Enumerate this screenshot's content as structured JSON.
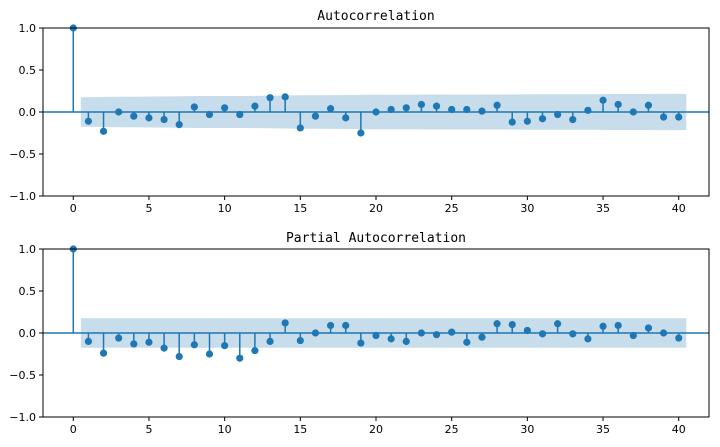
{
  "chart_data": [
    {
      "type": "stem",
      "title": "Autocorrelation",
      "xlim": [
        -2,
        42
      ],
      "ylim": [
        -1.0,
        1.0
      ],
      "xticks": [
        0,
        5,
        10,
        15,
        20,
        25,
        30,
        35,
        40
      ],
      "yticks": [
        1.0,
        0.5,
        0.0,
        -0.5,
        -1.0
      ],
      "ytick_labels": [
        "1.0",
        "0.5",
        "0.0",
        "−0.5",
        "−1.0"
      ],
      "lags": [
        0,
        1,
        2,
        3,
        4,
        5,
        6,
        7,
        8,
        9,
        10,
        11,
        12,
        13,
        14,
        15,
        16,
        17,
        18,
        19,
        20,
        21,
        22,
        23,
        24,
        25,
        26,
        27,
        28,
        29,
        30,
        31,
        32,
        33,
        34,
        35,
        36,
        37,
        38,
        39,
        40
      ],
      "values": [
        1.0,
        -0.11,
        -0.23,
        0.0,
        -0.05,
        -0.07,
        -0.09,
        -0.15,
        0.06,
        -0.03,
        0.05,
        -0.03,
        0.07,
        0.17,
        0.18,
        -0.19,
        -0.05,
        0.04,
        -0.07,
        -0.25,
        0.0,
        0.03,
        0.05,
        0.09,
        0.07,
        0.03,
        0.03,
        0.01,
        0.08,
        -0.12,
        -0.11,
        -0.08,
        -0.03,
        -0.09,
        0.02,
        0.14,
        0.09,
        0.0,
        0.08,
        -0.06,
        -0.06
      ],
      "confidence_band": [
        0.175,
        0.175,
        0.177,
        0.181,
        0.182,
        0.183,
        0.184,
        0.186,
        0.189,
        0.19,
        0.19,
        0.191,
        0.191,
        0.192,
        0.195,
        0.198,
        0.2,
        0.2,
        0.201,
        0.202,
        0.207,
        0.207,
        0.207,
        0.207,
        0.208,
        0.208,
        0.208,
        0.208,
        0.208,
        0.209,
        0.21,
        0.211,
        0.211,
        0.211,
        0.212,
        0.212,
        0.214,
        0.215,
        0.215,
        0.216,
        0.216
      ],
      "colors": {
        "stem": "#1f77b4",
        "band": "#1f77b4",
        "zero_line": "#1f77b4"
      }
    },
    {
      "type": "stem",
      "title": "Partial Autocorrelation",
      "xlim": [
        -2,
        42
      ],
      "ylim": [
        -1.0,
        1.0
      ],
      "xticks": [
        0,
        5,
        10,
        15,
        20,
        25,
        30,
        35,
        40
      ],
      "yticks": [
        1.0,
        0.5,
        0.0,
        -0.5,
        -1.0
      ],
      "ytick_labels": [
        "1.0",
        "0.5",
        "0.0",
        "−0.5",
        "−1.0"
      ],
      "lags": [
        0,
        1,
        2,
        3,
        4,
        5,
        6,
        7,
        8,
        9,
        10,
        11,
        12,
        13,
        14,
        15,
        16,
        17,
        18,
        19,
        20,
        21,
        22,
        23,
        24,
        25,
        26,
        27,
        28,
        29,
        30,
        31,
        32,
        33,
        34,
        35,
        36,
        37,
        38,
        39,
        40
      ],
      "values": [
        1.0,
        -0.1,
        -0.24,
        -0.06,
        -0.13,
        -0.11,
        -0.18,
        -0.28,
        -0.14,
        -0.25,
        -0.15,
        -0.3,
        -0.21,
        -0.1,
        0.12,
        -0.09,
        0.0,
        0.09,
        0.09,
        -0.12,
        -0.03,
        -0.07,
        -0.1,
        0.0,
        -0.02,
        0.01,
        -0.11,
        -0.05,
        0.11,
        0.1,
        0.03,
        -0.01,
        0.11,
        -0.01,
        -0.07,
        0.08,
        0.09,
        -0.03,
        0.06,
        0.0,
        -0.06
      ],
      "confidence_band": [
        0.175,
        0.175,
        0.175,
        0.175,
        0.175,
        0.175,
        0.175,
        0.175,
        0.175,
        0.175,
        0.175,
        0.175,
        0.175,
        0.175,
        0.175,
        0.175,
        0.175,
        0.175,
        0.175,
        0.175,
        0.175,
        0.175,
        0.175,
        0.175,
        0.175,
        0.175,
        0.175,
        0.175,
        0.175,
        0.175,
        0.175,
        0.175,
        0.175,
        0.175,
        0.175,
        0.175,
        0.175,
        0.175,
        0.175,
        0.175,
        0.175
      ],
      "colors": {
        "stem": "#1f77b4",
        "band": "#1f77b4",
        "zero_line": "#1f77b4"
      }
    }
  ]
}
